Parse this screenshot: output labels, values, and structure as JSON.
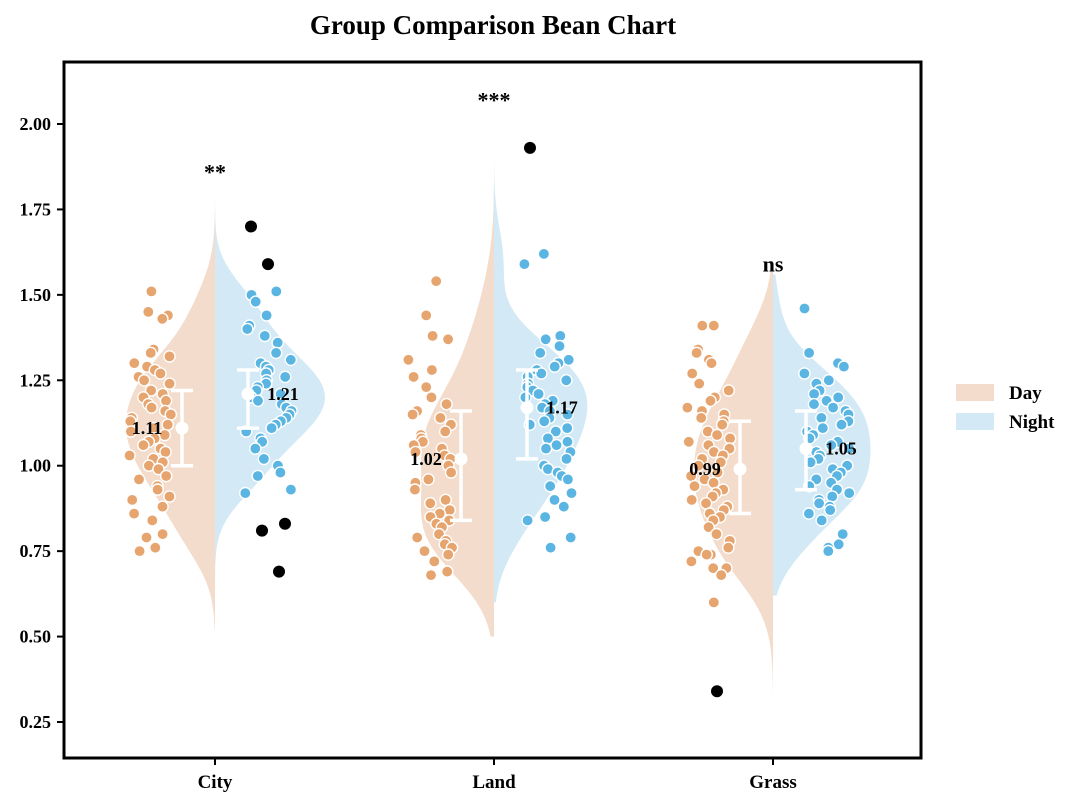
{
  "chart_data": {
    "type": "bean",
    "title": "Group Comparison Bean Chart",
    "xlabel": "",
    "ylabel": "",
    "ylim": [
      0.15,
      2.2
    ],
    "yticks": [
      "0.25",
      "0.50",
      "0.75",
      "1.00",
      "1.25",
      "1.50",
      "1.75",
      "2.00"
    ],
    "categories": [
      "City",
      "Land",
      "Grass"
    ],
    "legend": {
      "position": "right",
      "entries": [
        {
          "label": "Day",
          "color": "#f3dccb"
        },
        {
          "label": "Night",
          "color": "#d3e9f5"
        }
      ]
    },
    "colors": {
      "day_fill": "#f3dccb",
      "night_fill": "#d3e9f5",
      "day_point": "#e6a46f",
      "night_point": "#5ab5e2",
      "outlier": "#000000",
      "errorbar": "#ffffff"
    },
    "groups": [
      {
        "name": "City",
        "significance": "**",
        "day": {
          "mean": 1.11,
          "mean_label": "1.11",
          "err_low": 1.0,
          "err_high": 1.22,
          "density_range": [
            0.52,
            1.82
          ],
          "points": [
            1.51,
            1.45,
            1.44,
            1.43,
            1.34,
            1.33,
            1.32,
            1.3,
            1.29,
            1.28,
            1.27,
            1.26,
            1.25,
            1.24,
            1.22,
            1.21,
            1.2,
            1.19,
            1.18,
            1.17,
            1.16,
            1.15,
            1.14,
            1.13,
            1.12,
            1.11,
            1.1,
            1.09,
            1.08,
            1.07,
            1.06,
            1.05,
            1.04,
            1.03,
            1.02,
            1.01,
            1.0,
            0.99,
            0.97,
            0.96,
            0.94,
            0.93,
            0.91,
            0.9,
            0.88,
            0.86,
            0.84,
            0.8,
            0.79,
            0.76,
            0.75
          ],
          "outliers": []
        },
        "night": {
          "mean": 1.21,
          "mean_label": "1.21",
          "err_low": 1.11,
          "err_high": 1.28,
          "density_range": [
            0.6,
            1.85
          ],
          "points": [
            1.51,
            1.5,
            1.48,
            1.44,
            1.41,
            1.4,
            1.38,
            1.36,
            1.33,
            1.31,
            1.3,
            1.29,
            1.28,
            1.27,
            1.26,
            1.25,
            1.24,
            1.23,
            1.22,
            1.21,
            1.2,
            1.19,
            1.18,
            1.17,
            1.16,
            1.15,
            1.14,
            1.13,
            1.12,
            1.11,
            1.1,
            1.08,
            1.07,
            1.05,
            1.02,
            1.0,
            0.98,
            0.97,
            0.93,
            0.92
          ],
          "outliers": [
            1.7,
            1.59,
            0.83,
            0.81,
            0.69
          ]
        }
      },
      {
        "name": "Land",
        "significance": "***",
        "day": {
          "mean": 1.02,
          "mean_label": "1.02",
          "err_low": 0.84,
          "err_high": 1.16,
          "density_range": [
            0.5,
            2.06
          ],
          "points": [
            1.54,
            1.44,
            1.38,
            1.37,
            1.31,
            1.28,
            1.26,
            1.23,
            1.2,
            1.18,
            1.16,
            1.15,
            1.14,
            1.12,
            1.1,
            1.09,
            1.08,
            1.07,
            1.06,
            1.05,
            1.04,
            1.03,
            1.02,
            1.0,
            0.98,
            0.96,
            0.95,
            0.93,
            0.9,
            0.89,
            0.87,
            0.86,
            0.85,
            0.84,
            0.83,
            0.82,
            0.8,
            0.79,
            0.78,
            0.77,
            0.76,
            0.75,
            0.74,
            0.72,
            0.69,
            0.68
          ],
          "outliers": []
        },
        "night": {
          "mean": 1.17,
          "mean_label": "1.17",
          "err_low": 1.02,
          "err_high": 1.28,
          "density_range": [
            0.6,
            2.04
          ],
          "points": [
            1.62,
            1.59,
            1.38,
            1.37,
            1.35,
            1.33,
            1.31,
            1.3,
            1.29,
            1.28,
            1.27,
            1.26,
            1.25,
            1.24,
            1.23,
            1.22,
            1.21,
            1.2,
            1.19,
            1.18,
            1.17,
            1.16,
            1.15,
            1.14,
            1.13,
            1.12,
            1.11,
            1.1,
            1.08,
            1.07,
            1.06,
            1.05,
            1.04,
            1.02,
            1.0,
            0.99,
            0.98,
            0.97,
            0.96,
            0.94,
            0.92,
            0.9,
            0.88,
            0.85,
            0.84,
            0.79,
            0.76
          ],
          "outliers": [
            1.93
          ]
        }
      },
      {
        "name": "Grass",
        "significance": "ns",
        "day": {
          "mean": 0.99,
          "mean_label": "0.99",
          "err_low": 0.86,
          "err_high": 1.13,
          "density_range": [
            0.15,
            1.58
          ],
          "points": [
            1.41,
            1.41,
            1.34,
            1.33,
            1.31,
            1.3,
            1.27,
            1.24,
            1.22,
            1.2,
            1.19,
            1.17,
            1.16,
            1.15,
            1.14,
            1.13,
            1.12,
            1.1,
            1.09,
            1.08,
            1.07,
            1.06,
            1.05,
            1.04,
            1.03,
            1.02,
            1.01,
            1.0,
            0.98,
            0.97,
            0.96,
            0.95,
            0.94,
            0.93,
            0.92,
            0.91,
            0.9,
            0.89,
            0.88,
            0.87,
            0.86,
            0.85,
            0.84,
            0.82,
            0.8,
            0.78,
            0.76,
            0.75,
            0.74,
            0.74,
            0.72,
            0.7,
            0.7,
            0.68,
            0.6
          ],
          "outliers": [
            0.34
          ]
        },
        "night": {
          "mean": 1.05,
          "mean_label": "1.05",
          "err_low": 0.93,
          "err_high": 1.16,
          "density_range": [
            0.62,
            1.56
          ],
          "points": [
            1.46,
            1.33,
            1.3,
            1.29,
            1.27,
            1.25,
            1.24,
            1.22,
            1.21,
            1.2,
            1.19,
            1.18,
            1.17,
            1.16,
            1.15,
            1.14,
            1.13,
            1.12,
            1.11,
            1.1,
            1.09,
            1.08,
            1.07,
            1.06,
            1.05,
            1.04,
            1.03,
            1.02,
            1.01,
            1.0,
            0.99,
            0.98,
            0.97,
            0.96,
            0.95,
            0.94,
            0.93,
            0.92,
            0.91,
            0.9,
            0.89,
            0.88,
            0.87,
            0.86,
            0.84,
            0.8,
            0.77,
            0.76,
            0.75
          ],
          "outliers": []
        }
      }
    ]
  }
}
